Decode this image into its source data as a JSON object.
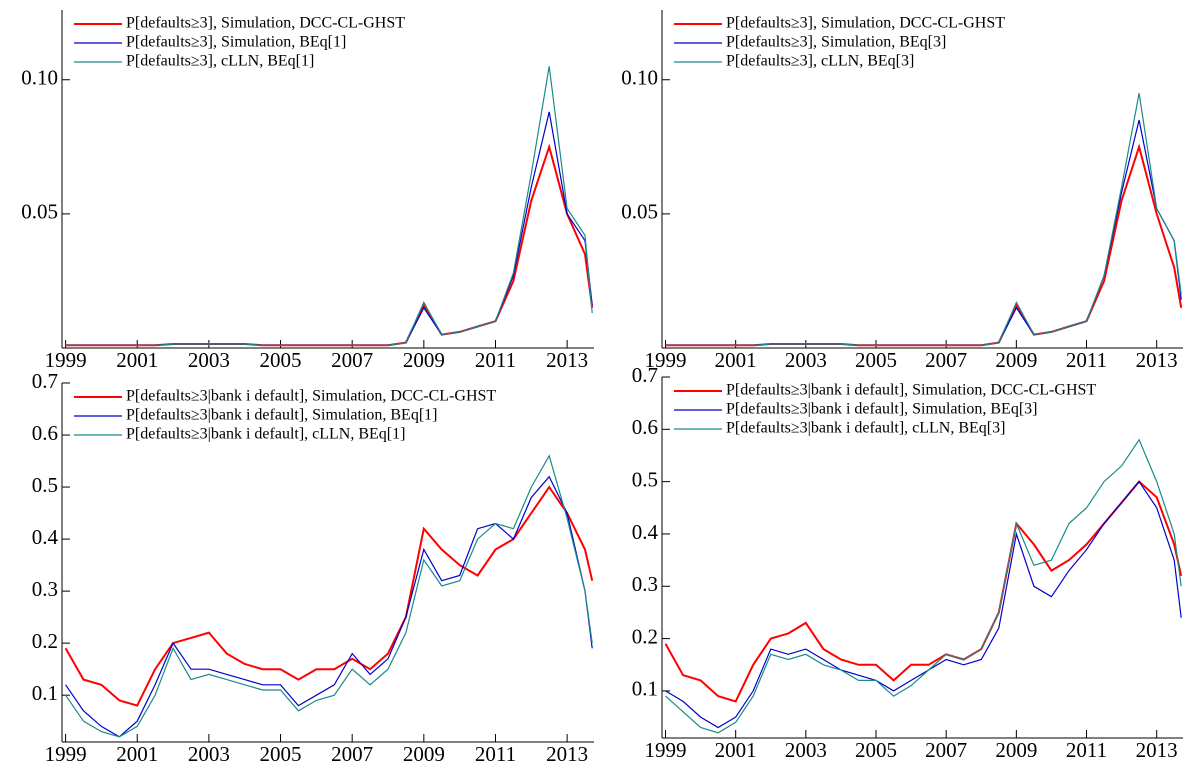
{
  "chart_data": [
    {
      "type": "line",
      "legend": "upper left",
      "x": [
        1999,
        1999.5,
        2000,
        2000.5,
        2001,
        2001.5,
        2002,
        2002.5,
        2003,
        2003.5,
        2004,
        2004.5,
        2005,
        2005.5,
        2006,
        2006.5,
        2007,
        2007.5,
        2008,
        2008.5,
        2009,
        2009.5,
        2010,
        2010.5,
        2011,
        2011.5,
        2012,
        2012.5,
        2013,
        2013.5,
        2013.7
      ],
      "xlim": [
        1998.9,
        2013.75
      ],
      "xticks": [
        1999,
        2001,
        2003,
        2005,
        2007,
        2009,
        2011,
        2013
      ],
      "ylim": [
        0,
        0.126
      ],
      "yticks": [
        0.05,
        {
          "value": 0.1,
          "label": "0.10"
        }
      ],
      "series": [
        {
          "name": "P[defaults≥3], Simulation, DCC-CL-GHST",
          "color": "#ff0000",
          "values": [
            0.001,
            0.001,
            0.001,
            0.001,
            0.001,
            0.001,
            0.0015,
            0.0015,
            0.0015,
            0.0015,
            0.0015,
            0.001,
            0.001,
            0.001,
            0.001,
            0.001,
            0.001,
            0.001,
            0.001,
            0.002,
            0.016,
            0.005,
            0.006,
            0.008,
            0.01,
            0.025,
            0.055,
            0.075,
            0.05,
            0.035,
            0.015
          ]
        },
        {
          "name": "P[defaults≥3], Simulation, BEq[1]",
          "color": "#0000cc",
          "values": [
            0.001,
            0.001,
            0.001,
            0.001,
            0.001,
            0.001,
            0.0015,
            0.0015,
            0.0015,
            0.0015,
            0.0015,
            0.001,
            0.001,
            0.001,
            0.001,
            0.001,
            0.001,
            0.001,
            0.001,
            0.002,
            0.015,
            0.005,
            0.006,
            0.008,
            0.01,
            0.027,
            0.06,
            0.088,
            0.05,
            0.04,
            0.016
          ]
        },
        {
          "name": "P[defaults≥3], cLLN, BEq[1]",
          "color": "#1a8a8a",
          "values": [
            0.001,
            0.001,
            0.001,
            0.001,
            0.001,
            0.001,
            0.0015,
            0.0015,
            0.0015,
            0.0015,
            0.0015,
            0.001,
            0.001,
            0.001,
            0.001,
            0.001,
            0.001,
            0.001,
            0.001,
            0.002,
            0.017,
            0.005,
            0.006,
            0.008,
            0.01,
            0.028,
            0.065,
            0.105,
            0.052,
            0.042,
            0.013
          ]
        }
      ]
    },
    {
      "type": "line",
      "legend": "upper left",
      "x": [
        1999,
        1999.5,
        2000,
        2000.5,
        2001,
        2001.5,
        2002,
        2002.5,
        2003,
        2003.5,
        2004,
        2004.5,
        2005,
        2005.5,
        2006,
        2006.5,
        2007,
        2007.5,
        2008,
        2008.5,
        2009,
        2009.5,
        2010,
        2010.5,
        2011,
        2011.5,
        2012,
        2012.5,
        2013,
        2013.5,
        2013.7
      ],
      "xlim": [
        1998.9,
        2013.75
      ],
      "xticks": [
        1999,
        2001,
        2003,
        2005,
        2007,
        2009,
        2011,
        2013
      ],
      "ylim": [
        0,
        0.126
      ],
      "yticks": [
        0.05,
        {
          "value": 0.1,
          "label": "0.10"
        }
      ],
      "series": [
        {
          "name": "P[defaults≥3], Simulation, DCC-CL-GHST",
          "color": "#ff0000",
          "values": [
            0.001,
            0.001,
            0.001,
            0.001,
            0.001,
            0.001,
            0.0015,
            0.0015,
            0.0015,
            0.0015,
            0.0015,
            0.001,
            0.001,
            0.001,
            0.001,
            0.001,
            0.001,
            0.001,
            0.001,
            0.002,
            0.016,
            0.005,
            0.006,
            0.008,
            0.01,
            0.025,
            0.055,
            0.075,
            0.05,
            0.03,
            0.015
          ]
        },
        {
          "name": "P[defaults≥3], Simulation, BEq[3]",
          "color": "#0000cc",
          "values": [
            0.001,
            0.001,
            0.001,
            0.001,
            0.001,
            0.001,
            0.0015,
            0.0015,
            0.0015,
            0.0015,
            0.0015,
            0.001,
            0.001,
            0.001,
            0.001,
            0.001,
            0.001,
            0.001,
            0.001,
            0.002,
            0.015,
            0.005,
            0.006,
            0.008,
            0.01,
            0.027,
            0.058,
            0.085,
            0.052,
            0.04,
            0.018
          ]
        },
        {
          "name": "P[defaults≥3], cLLN, BEq[3]",
          "color": "#1a8a8a",
          "values": [
            0.001,
            0.001,
            0.001,
            0.001,
            0.001,
            0.001,
            0.0015,
            0.0015,
            0.0015,
            0.0015,
            0.0015,
            0.001,
            0.001,
            0.001,
            0.001,
            0.001,
            0.001,
            0.001,
            0.001,
            0.002,
            0.017,
            0.005,
            0.006,
            0.008,
            0.01,
            0.027,
            0.06,
            0.095,
            0.052,
            0.04,
            0.02
          ]
        }
      ]
    },
    {
      "type": "line",
      "legend": "upper left",
      "x": [
        1999,
        1999.5,
        2000,
        2000.5,
        2001,
        2001.5,
        2002,
        2002.5,
        2003,
        2003.5,
        2004,
        2004.5,
        2005,
        2005.5,
        2006,
        2006.5,
        2007,
        2007.5,
        2008,
        2008.5,
        2009,
        2009.5,
        2010,
        2010.5,
        2011,
        2011.5,
        2012,
        2012.5,
        2013,
        2013.5,
        2013.7
      ],
      "xlim": [
        1998.9,
        2013.75
      ],
      "xticks": [
        1999,
        2001,
        2003,
        2005,
        2007,
        2009,
        2011,
        2013
      ],
      "ylim": [
        0.01,
        0.7
      ],
      "yticks": [
        0.1,
        0.2,
        0.3,
        0.4,
        0.5,
        0.6,
        0.7
      ],
      "series": [
        {
          "name": "P[defaults≥3|bank i default], Simulation, DCC-CL-GHST",
          "color": "#ff0000",
          "values": [
            0.19,
            0.13,
            0.12,
            0.09,
            0.08,
            0.15,
            0.2,
            0.21,
            0.22,
            0.18,
            0.16,
            0.15,
            0.15,
            0.13,
            0.15,
            0.15,
            0.17,
            0.15,
            0.18,
            0.25,
            0.42,
            0.38,
            0.35,
            0.33,
            0.38,
            0.4,
            0.45,
            0.5,
            0.45,
            0.38,
            0.32
          ]
        },
        {
          "name": "P[defaults≥3|bank i default], Simulation, BEq[1]",
          "color": "#0000cc",
          "values": [
            0.12,
            0.07,
            0.04,
            0.02,
            0.05,
            0.12,
            0.2,
            0.15,
            0.15,
            0.14,
            0.13,
            0.12,
            0.12,
            0.08,
            0.1,
            0.12,
            0.18,
            0.14,
            0.17,
            0.25,
            0.38,
            0.32,
            0.33,
            0.42,
            0.43,
            0.4,
            0.48,
            0.52,
            0.45,
            0.3,
            0.19
          ]
        },
        {
          "name": "P[defaults≥3|bank i default], cLLN, BEq[1]",
          "color": "#1a8a8a",
          "values": [
            0.1,
            0.05,
            0.03,
            0.02,
            0.04,
            0.1,
            0.19,
            0.13,
            0.14,
            0.13,
            0.12,
            0.11,
            0.11,
            0.07,
            0.09,
            0.1,
            0.15,
            0.12,
            0.15,
            0.22,
            0.36,
            0.31,
            0.32,
            0.4,
            0.43,
            0.42,
            0.5,
            0.56,
            0.44,
            0.3,
            0.2
          ]
        }
      ]
    },
    {
      "type": "line",
      "legend": "upper left",
      "x": [
        1999,
        1999.5,
        2000,
        2000.5,
        2001,
        2001.5,
        2002,
        2002.5,
        2003,
        2003.5,
        2004,
        2004.5,
        2005,
        2005.5,
        2006,
        2006.5,
        2007,
        2007.5,
        2008,
        2008.5,
        2009,
        2009.5,
        2010,
        2010.5,
        2011,
        2011.5,
        2012,
        2012.5,
        2013,
        2013.5,
        2013.7
      ],
      "xlim": [
        1998.9,
        2013.75
      ],
      "xticks": [
        1999,
        2001,
        2003,
        2005,
        2007,
        2009,
        2011,
        2013
      ],
      "ylim": [
        0.01,
        0.7
      ],
      "yticks": [
        0.1,
        0.2,
        0.3,
        0.4,
        0.5,
        0.6,
        0.7
      ],
      "series": [
        {
          "name": "P[defaults≥3|bank i default], Simulation, DCC-CL-GHST",
          "color": "#ff0000",
          "values": [
            0.19,
            0.13,
            0.12,
            0.09,
            0.08,
            0.15,
            0.2,
            0.21,
            0.23,
            0.18,
            0.16,
            0.15,
            0.15,
            0.12,
            0.15,
            0.15,
            0.17,
            0.16,
            0.18,
            0.25,
            0.42,
            0.38,
            0.33,
            0.35,
            0.38,
            0.42,
            0.46,
            0.5,
            0.47,
            0.38,
            0.32
          ]
        },
        {
          "name": "P[defaults≥3|bank i default], Simulation, BEq[3]",
          "color": "#0000cc",
          "values": [
            0.1,
            0.08,
            0.05,
            0.03,
            0.05,
            0.1,
            0.18,
            0.17,
            0.18,
            0.16,
            0.14,
            0.13,
            0.12,
            0.1,
            0.12,
            0.14,
            0.16,
            0.15,
            0.16,
            0.22,
            0.4,
            0.3,
            0.28,
            0.33,
            0.37,
            0.42,
            0.46,
            0.5,
            0.45,
            0.35,
            0.24
          ]
        },
        {
          "name": "P[defaults≥3|bank i default], cLLN, BEq[3]",
          "color": "#1a8a8a",
          "values": [
            0.09,
            0.06,
            0.03,
            0.02,
            0.04,
            0.09,
            0.17,
            0.16,
            0.17,
            0.15,
            0.14,
            0.12,
            0.12,
            0.09,
            0.11,
            0.14,
            0.17,
            0.16,
            0.18,
            0.25,
            0.42,
            0.34,
            0.35,
            0.42,
            0.45,
            0.5,
            0.53,
            0.58,
            0.5,
            0.4,
            0.3
          ]
        }
      ]
    }
  ]
}
